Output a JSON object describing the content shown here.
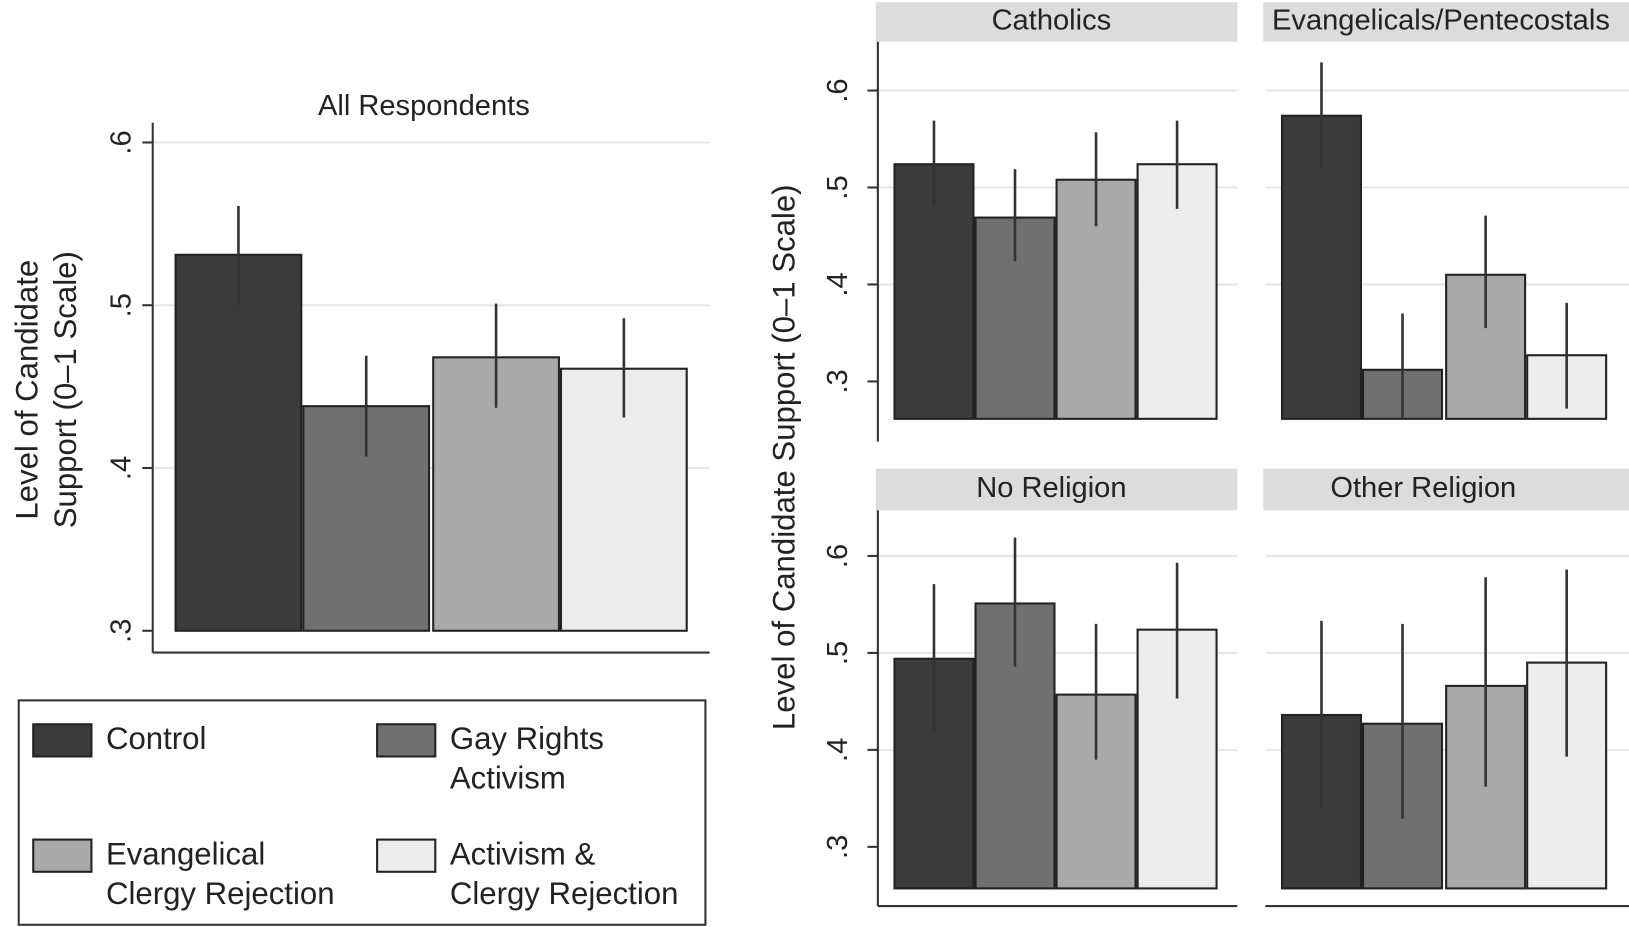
{
  "chart_data": {
    "type": "bar",
    "ylabel": "Level of Candidate Support (0–1 Scale)",
    "ylabel_left_lines": [
      "Level of Candidate",
      "Support (0–1 Scale)"
    ],
    "ytick_labels": [
      ".3",
      ".4",
      ".5",
      ".6"
    ],
    "ytick_values": [
      0.3,
      0.4,
      0.5,
      0.6
    ],
    "grid": true,
    "error_bars": "confidence intervals",
    "legend": {
      "placement": "bottom-left",
      "entries": [
        {
          "lines": [
            "Control"
          ],
          "color": "#3b3b3b"
        },
        {
          "lines": [
            "Gay Rights",
            "Activism"
          ],
          "color": "#707070"
        },
        {
          "lines": [
            "Evangelical",
            "Clergy Rejection"
          ],
          "color": "#a9a9a9"
        },
        {
          "lines": [
            "Activism &",
            "Clergy Rejection"
          ],
          "color": "#ececec"
        }
      ]
    },
    "categories": [
      "Control",
      "Gay Rights Activism",
      "Evangelical Clergy Rejection",
      "Activism & Clergy Rejection"
    ],
    "panels": [
      {
        "title": "All Respondents",
        "ylim": [
          0.287,
          0.612
        ],
        "values": [
          0.531,
          0.438,
          0.468,
          0.461
        ],
        "ci_low": [
          0.5,
          0.407,
          0.437,
          0.431
        ],
        "ci_high": [
          0.561,
          0.469,
          0.501,
          0.492
        ]
      },
      {
        "title": "Catholics",
        "ylim": [
          0.24,
          0.648
        ],
        "values": [
          0.524,
          0.469,
          0.508,
          0.524
        ],
        "ci_low": [
          0.481,
          0.424,
          0.46,
          0.478
        ],
        "ci_high": [
          0.569,
          0.519,
          0.557,
          0.569
        ]
      },
      {
        "title": "Evangelicals/Pentecostals",
        "ylim": [
          0.24,
          0.648
        ],
        "values": [
          0.574,
          0.312,
          0.41,
          0.327
        ],
        "ci_low": [
          0.52,
          0.262,
          0.355,
          0.272
        ],
        "ci_high": [
          0.629,
          0.37,
          0.471,
          0.381
        ]
      },
      {
        "title": "No Religion",
        "ylim": [
          0.24,
          0.648
        ],
        "values": [
          0.494,
          0.551,
          0.457,
          0.524
        ],
        "ci_low": [
          0.418,
          0.486,
          0.39,
          0.453
        ],
        "ci_high": [
          0.571,
          0.619,
          0.53,
          0.593
        ]
      },
      {
        "title": "Other Religion",
        "ylim": [
          0.24,
          0.648
        ],
        "values": [
          0.436,
          0.427,
          0.466,
          0.49
        ],
        "ci_low": [
          0.34,
          0.329,
          0.362,
          0.393
        ],
        "ci_high": [
          0.533,
          0.53,
          0.578,
          0.586
        ]
      }
    ]
  }
}
